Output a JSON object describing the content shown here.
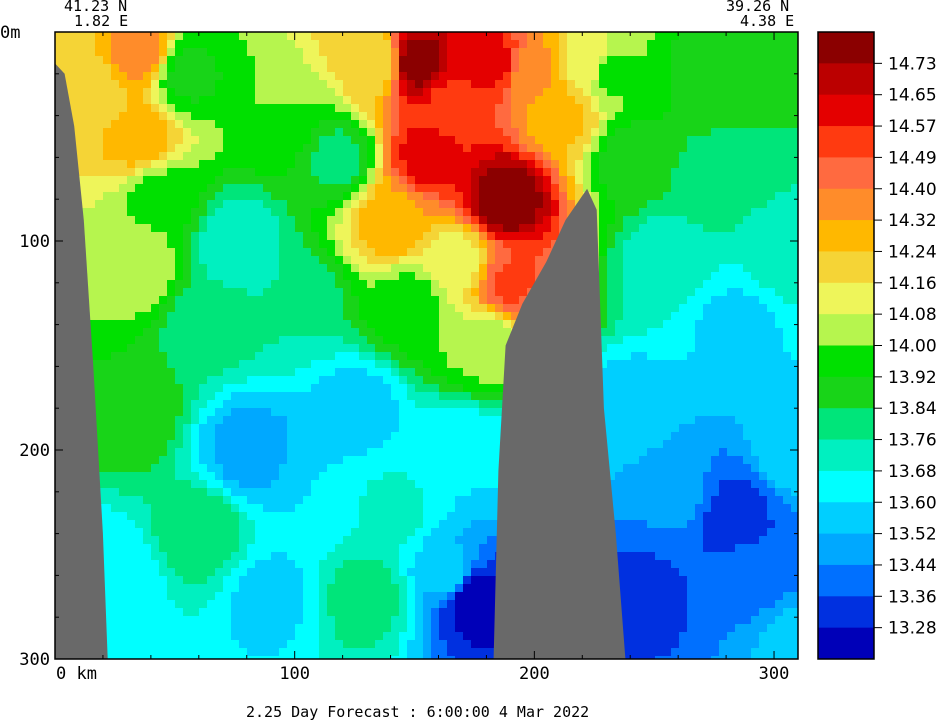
{
  "chart_data": {
    "type": "heatmap",
    "title": "",
    "corner_left": {
      "lat": "41.23 N",
      "lon": "1.82 E"
    },
    "corner_right": {
      "lat": "39.26 N",
      "lon": "4.38 E"
    },
    "xlabel": "",
    "ylabel": "",
    "x_unit": "km",
    "y_unit": "m",
    "xlim": [
      0,
      310
    ],
    "ylim": [
      0,
      300
    ],
    "x_ticks": [
      0,
      100,
      200,
      300
    ],
    "x_tick_labels": [
      "0  km",
      "100",
      "200",
      "300"
    ],
    "y_ticks": [
      0,
      100,
      200,
      300
    ],
    "y_tick_labels": [
      "0m",
      "100",
      "200",
      "300"
    ],
    "footer": "2.25 Day Forecast :  6:00:00   4 Mar 2022",
    "colorbar": {
      "labels": [
        "14.73",
        "14.65",
        "14.57",
        "14.49",
        "14.40",
        "14.32",
        "14.24",
        "14.16",
        "14.08",
        "14.00",
        "13.92",
        "13.84",
        "13.76",
        "13.68",
        "13.60",
        "13.52",
        "13.44",
        "13.36",
        "13.28"
      ],
      "colors": [
        "#8b0000",
        "#bb0000",
        "#e40000",
        "#ff3a10",
        "#ff6a40",
        "#ff8c2a",
        "#ffb800",
        "#f5d436",
        "#eef55a",
        "#b6f54e",
        "#00e000",
        "#18d418",
        "#00e57a",
        "#00f0c0",
        "#00ffff",
        "#00cfff",
        "#00a8ff",
        "#0070ff",
        "#0030e0",
        "#0000b8"
      ]
    },
    "terrain": [
      {
        "x": 0,
        "y": 300
      },
      {
        "x": 0,
        "y": 15
      },
      {
        "x": 4,
        "y": 20
      },
      {
        "x": 8,
        "y": 45
      },
      {
        "x": 12,
        "y": 90
      },
      {
        "x": 16,
        "y": 160
      },
      {
        "x": 20,
        "y": 240
      },
      {
        "x": 22,
        "y": 300
      },
      {
        "x": 183,
        "y": 300
      },
      {
        "x": 185,
        "y": 210
      },
      {
        "x": 188,
        "y": 150
      },
      {
        "x": 195,
        "y": 130
      },
      {
        "x": 205,
        "y": 110
      },
      {
        "x": 213,
        "y": 90
      },
      {
        "x": 222,
        "y": 75
      },
      {
        "x": 226,
        "y": 85
      },
      {
        "x": 229,
        "y": 180
      },
      {
        "x": 234,
        "y": 240
      },
      {
        "x": 238,
        "y": 300
      }
    ],
    "field": [
      {
        "x": 0,
        "y": 0,
        "v": 14.22
      },
      {
        "x": 15,
        "y": 30,
        "v": 14.18
      },
      {
        "x": 35,
        "y": 10,
        "v": 14.36
      },
      {
        "x": 35,
        "y": 50,
        "v": 14.28
      },
      {
        "x": 33,
        "y": 110,
        "v": 14.08
      },
      {
        "x": 30,
        "y": 180,
        "v": 13.92
      },
      {
        "x": 25,
        "y": 260,
        "v": 13.6
      },
      {
        "x": 45,
        "y": 80,
        "v": 13.96
      },
      {
        "x": 55,
        "y": 20,
        "v": 13.9
      },
      {
        "x": 65,
        "y": 140,
        "v": 13.78
      },
      {
        "x": 60,
        "y": 240,
        "v": 13.82
      },
      {
        "x": 75,
        "y": 100,
        "v": 13.7
      },
      {
        "x": 82,
        "y": 200,
        "v": 13.48
      },
      {
        "x": 90,
        "y": 270,
        "v": 13.58
      },
      {
        "x": 95,
        "y": 40,
        "v": 14.0
      },
      {
        "x": 100,
        "y": 130,
        "v": 13.76
      },
      {
        "x": 110,
        "y": 220,
        "v": 13.6
      },
      {
        "x": 118,
        "y": 60,
        "v": 13.82
      },
      {
        "x": 125,
        "y": 180,
        "v": 13.56
      },
      {
        "x": 130,
        "y": 270,
        "v": 13.8
      },
      {
        "x": 135,
        "y": 15,
        "v": 14.16
      },
      {
        "x": 142,
        "y": 90,
        "v": 14.3
      },
      {
        "x": 150,
        "y": 15,
        "v": 14.78
      },
      {
        "x": 155,
        "y": 60,
        "v": 14.6
      },
      {
        "x": 148,
        "y": 130,
        "v": 13.96
      },
      {
        "x": 140,
        "y": 230,
        "v": 13.7
      },
      {
        "x": 165,
        "y": 35,
        "v": 14.55
      },
      {
        "x": 168,
        "y": 110,
        "v": 14.12
      },
      {
        "x": 170,
        "y": 200,
        "v": 13.6
      },
      {
        "x": 174,
        "y": 270,
        "v": 13.2
      },
      {
        "x": 165,
        "y": 260,
        "v": 13.55
      },
      {
        "x": 182,
        "y": 15,
        "v": 14.6
      },
      {
        "x": 188,
        "y": 80,
        "v": 14.8
      },
      {
        "x": 190,
        "y": 120,
        "v": 14.5
      },
      {
        "x": 180,
        "y": 150,
        "v": 14.02
      },
      {
        "x": 200,
        "y": 20,
        "v": 14.34
      },
      {
        "x": 212,
        "y": 40,
        "v": 14.26
      },
      {
        "x": 222,
        "y": 15,
        "v": 14.14
      },
      {
        "x": 232,
        "y": 20,
        "v": 13.98
      },
      {
        "x": 240,
        "y": 60,
        "v": 13.88
      },
      {
        "x": 240,
        "y": 180,
        "v": 13.56
      },
      {
        "x": 245,
        "y": 270,
        "v": 13.34
      },
      {
        "x": 255,
        "y": 110,
        "v": 13.7
      },
      {
        "x": 262,
        "y": 220,
        "v": 13.46
      },
      {
        "x": 270,
        "y": 20,
        "v": 13.9
      },
      {
        "x": 275,
        "y": 70,
        "v": 13.8
      },
      {
        "x": 285,
        "y": 140,
        "v": 13.58
      },
      {
        "x": 282,
        "y": 230,
        "v": 13.32
      },
      {
        "x": 292,
        "y": 260,
        "v": 13.38
      },
      {
        "x": 300,
        "y": 20,
        "v": 13.84
      },
      {
        "x": 305,
        "y": 110,
        "v": 13.7
      },
      {
        "x": 308,
        "y": 200,
        "v": 13.56
      },
      {
        "x": 308,
        "y": 290,
        "v": 13.54
      }
    ]
  }
}
